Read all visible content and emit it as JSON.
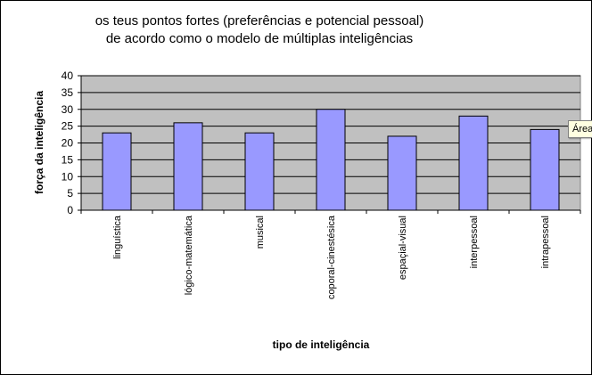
{
  "chart_data": {
    "type": "bar",
    "title_line1": "os teus pontos fortes (preferências e potencial pessoal)",
    "title_line2": "de acordo como o modelo de múltiplas inteligências",
    "xlabel": "tipo de inteligência",
    "ylabel": "força da inteligência",
    "ylim": [
      0,
      40
    ],
    "yticks": [
      0,
      5,
      10,
      15,
      20,
      25,
      30,
      35,
      40
    ],
    "grid": true,
    "categories": [
      "linguística",
      "lógico-matemática",
      "musical",
      "coporal-cinestésica",
      "espaçial-visual",
      "interpessoal",
      "intrapessoal"
    ],
    "values": [
      23,
      26,
      23,
      30,
      22,
      28,
      24
    ],
    "colors": {
      "bar": "#9999ff",
      "plot_bg": "#c0c0c0",
      "grid": "#000000"
    }
  },
  "tooltip": {
    "text": "Área"
  }
}
